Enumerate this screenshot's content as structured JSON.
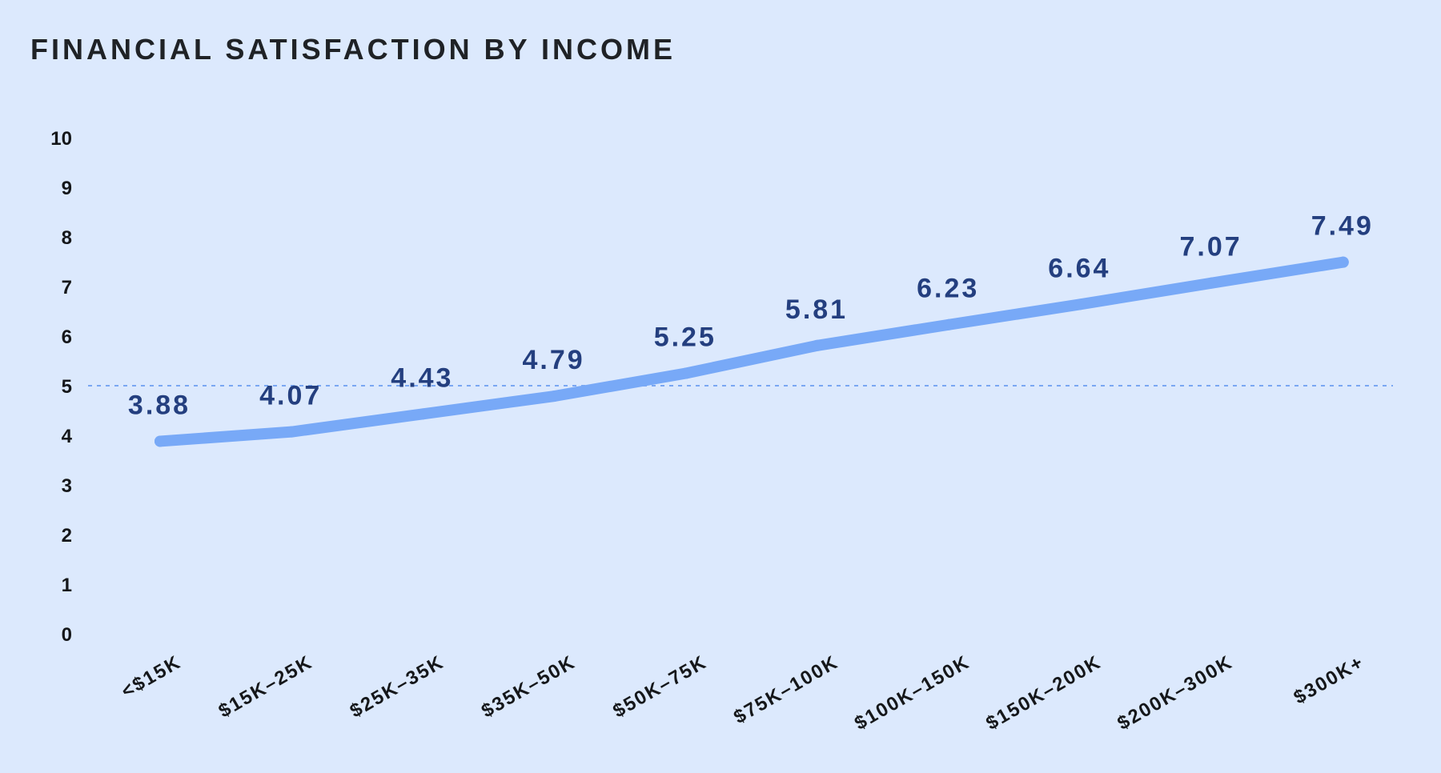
{
  "chart_data": {
    "type": "line",
    "title": "FINANCIAL SATISFACTION BY INCOME",
    "xlabel": "",
    "ylabel": "",
    "categories": [
      "<$15K",
      "$15K–25K",
      "$25K–35K",
      "$35K–50K",
      "$50K–75K",
      "$75K–100K",
      "$100K–150K",
      "$150K–200K",
      "$200K–300K",
      "$300K+"
    ],
    "series": [
      {
        "values": [
          3.88,
          4.07,
          4.43,
          4.79,
          5.25,
          5.81,
          6.23,
          6.64,
          7.07,
          7.49
        ]
      }
    ],
    "data_labels": [
      "3.88",
      "4.07",
      "4.43",
      "4.79",
      "5.25",
      "5.81",
      "6.23",
      "6.64",
      "7.07",
      "7.49"
    ],
    "yticks": [
      "0",
      "1",
      "2",
      "3",
      "4",
      "5",
      "6",
      "7",
      "8",
      "9",
      "10"
    ],
    "ylim": [
      0,
      10
    ],
    "reference_line": 5,
    "grid": false,
    "legend": "none",
    "colors": {
      "background": "#dce9fd",
      "line": "#78a9f7",
      "reference_line": "#7aa7f2",
      "data_label": "#243f7f",
      "text": "#15171a"
    }
  }
}
